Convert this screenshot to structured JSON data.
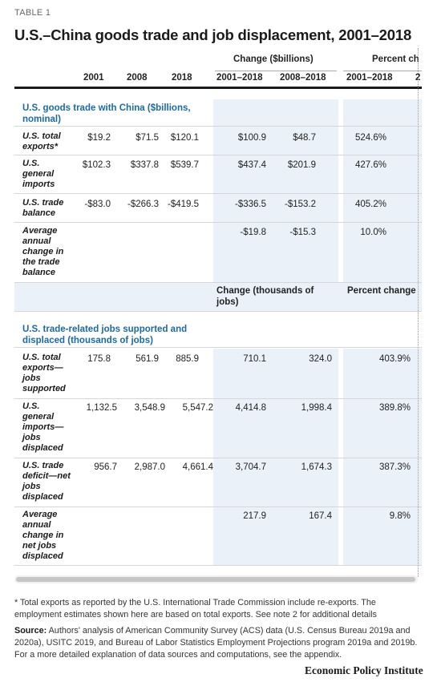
{
  "eyebrow": "TABLE 1",
  "title": "U.S.–China goods trade and job displacement, 2001–2018",
  "headers": {
    "change_billions": "Change ($billions)",
    "percent_change_partial": "Percent ch",
    "y2001": "2001",
    "y2008": "2008",
    "y2018": "2018",
    "r2001_2018": "2001–2018",
    "r2008_2018": "2008–2018",
    "pct_2001_2018": "2001–2018",
    "pct_partial": "2"
  },
  "section1": {
    "title": "U.S. goods trade with China ($billions, nominal)",
    "rows": [
      {
        "label": "U.S. total exports*",
        "v2001": "$19.2",
        "v2008": "$71.5",
        "v2018": "$120.1",
        "c0118": "$100.9",
        "c0818": "$48.7",
        "pct": "524.6%"
      },
      {
        "label": "U.S. general imports",
        "v2001": "$102.3",
        "v2008": "$337.8",
        "v2018": "$539.7",
        "c0118": "$437.4",
        "c0818": "$201.9",
        "pct": "427.6%"
      },
      {
        "label": "U.S. trade balance",
        "v2001": "-$83.0",
        "v2008": "-$266.3",
        "v2018": "-$419.5",
        "c0118": "-$336.5",
        "c0818": "-$153.2",
        "pct": "405.2%"
      },
      {
        "label": "Average annual change in the trade balance",
        "v2001": "",
        "v2008": "",
        "v2018": "",
        "c0118": "-$19.8",
        "c0818": "-$15.3",
        "pct": "10.0%"
      }
    ]
  },
  "mid_headers": {
    "change_thousands": "Change (thousands of jobs)",
    "percent_change": "Percent change"
  },
  "section2": {
    "title": "U.S. trade-related jobs supported and displaced (thousands of jobs)",
    "rows": [
      {
        "label": "U.S. total exports—jobs supported",
        "v2001": "175.8",
        "v2008": "561.9",
        "v2018": "885.9",
        "c0118": "710.1",
        "c0818": "324.0",
        "pct": "403.9%"
      },
      {
        "label": "U.S. general imports—jobs displaced",
        "v2001": "1,132.5",
        "v2008": "3,548.9",
        "v2018": "5,547.2",
        "c0118": "4,414.8",
        "c0818": "1,998.4",
        "pct": "389.8%"
      },
      {
        "label": "U.S. trade deficit—net jobs displaced",
        "v2001": "956.7",
        "v2008": "2,987.0",
        "v2018": "4,661.4",
        "c0118": "3,704.7",
        "c0818": "1,674.3",
        "pct": "387.3%"
      },
      {
        "label": "Average annual change in net jobs displaced",
        "v2001": "",
        "v2008": "",
        "v2018": "",
        "c0118": "217.9",
        "c0818": "167.4",
        "pct": "9.8%"
      }
    ]
  },
  "footnote": "* Total exports as reported by the U.S. International Trade Commission include re-exports. The employment estimates shown here are based on total exports. See note 2 for additional details",
  "source_label": "Source:",
  "source_text": "Authors' analysis of American Community Survey (ACS) data (U.S. Census Bureau 2019a and 2020a), USITC 2019, and Bureau of Labor Statistics Employment Projections program 2019a and 2019b. For a more detailed explanation of data sources and computations, see the appendix.",
  "brand": "Economic Policy Institute",
  "colors": {
    "accent": "#1a6aa3",
    "shade": "#eaf1f8"
  }
}
